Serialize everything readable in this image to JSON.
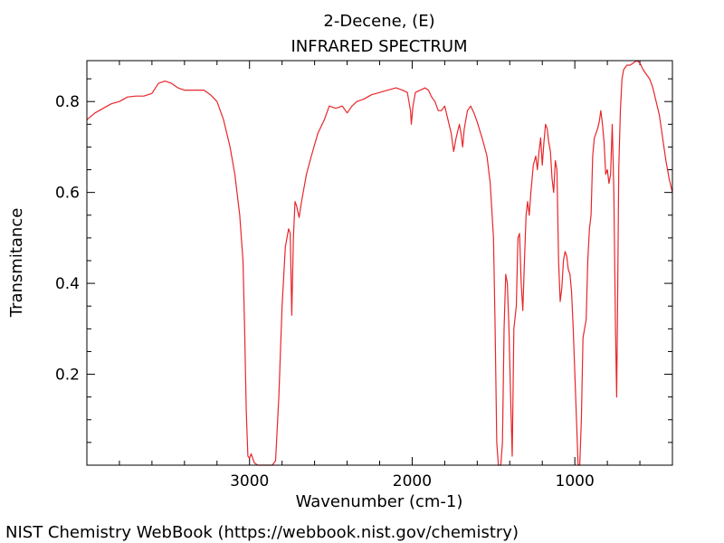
{
  "chart_data": {
    "type": "line",
    "title": "2-Decene, (E)",
    "subtitle": "INFRARED SPECTRUM",
    "xlabel": "Wavenumber (cm-1)",
    "ylabel": "Transmitance",
    "xlim": [
      4000,
      400
    ],
    "ylim": [
      0.0,
      0.89
    ],
    "x_reversed": true,
    "x_ticks": [
      3000,
      2000,
      1000
    ],
    "x_tick_labels": [
      "3000",
      "2000",
      "1000"
    ],
    "y_ticks": [
      0.2,
      0.4,
      0.6,
      0.8
    ],
    "y_tick_labels": [
      "0.2",
      "0.4",
      "0.6",
      "0.8"
    ],
    "grid": false,
    "line_color": "#e8262a",
    "series": [
      {
        "points": [
          [
            4000,
            0.76
          ],
          [
            3950,
            0.775
          ],
          [
            3900,
            0.785
          ],
          [
            3850,
            0.795
          ],
          [
            3800,
            0.8
          ],
          [
            3750,
            0.81
          ],
          [
            3700,
            0.812
          ],
          [
            3650,
            0.812
          ],
          [
            3600,
            0.818
          ],
          [
            3560,
            0.84
          ],
          [
            3520,
            0.845
          ],
          [
            3480,
            0.84
          ],
          [
            3440,
            0.83
          ],
          [
            3400,
            0.825
          ],
          [
            3360,
            0.825
          ],
          [
            3320,
            0.825
          ],
          [
            3280,
            0.825
          ],
          [
            3240,
            0.815
          ],
          [
            3200,
            0.8
          ],
          [
            3160,
            0.76
          ],
          [
            3120,
            0.7
          ],
          [
            3090,
            0.64
          ],
          [
            3060,
            0.55
          ],
          [
            3040,
            0.45
          ],
          [
            3030,
            0.3
          ],
          [
            3020,
            0.12
          ],
          [
            3010,
            0.02
          ],
          [
            3000,
            0.015
          ],
          [
            2990,
            0.025
          ],
          [
            2970,
            0.005
          ],
          [
            2950,
            0.0
          ],
          [
            2900,
            0.0
          ],
          [
            2860,
            0.0
          ],
          [
            2840,
            0.01
          ],
          [
            2820,
            0.15
          ],
          [
            2800,
            0.35
          ],
          [
            2780,
            0.48
          ],
          [
            2760,
            0.52
          ],
          [
            2750,
            0.51
          ],
          [
            2740,
            0.33
          ],
          [
            2730,
            0.5
          ],
          [
            2720,
            0.58
          ],
          [
            2710,
            0.57
          ],
          [
            2695,
            0.545
          ],
          [
            2680,
            0.58
          ],
          [
            2650,
            0.64
          ],
          [
            2620,
            0.68
          ],
          [
            2580,
            0.73
          ],
          [
            2540,
            0.76
          ],
          [
            2510,
            0.79
          ],
          [
            2470,
            0.785
          ],
          [
            2430,
            0.79
          ],
          [
            2400,
            0.775
          ],
          [
            2370,
            0.79
          ],
          [
            2340,
            0.8
          ],
          [
            2300,
            0.805
          ],
          [
            2250,
            0.815
          ],
          [
            2200,
            0.82
          ],
          [
            2150,
            0.825
          ],
          [
            2100,
            0.83
          ],
          [
            2060,
            0.825
          ],
          [
            2030,
            0.82
          ],
          [
            2010,
            0.78
          ],
          [
            2005,
            0.75
          ],
          [
            1995,
            0.79
          ],
          [
            1980,
            0.82
          ],
          [
            1950,
            0.825
          ],
          [
            1920,
            0.83
          ],
          [
            1900,
            0.825
          ],
          [
            1880,
            0.81
          ],
          [
            1860,
            0.8
          ],
          [
            1840,
            0.78
          ],
          [
            1820,
            0.78
          ],
          [
            1800,
            0.79
          ],
          [
            1780,
            0.76
          ],
          [
            1760,
            0.73
          ],
          [
            1745,
            0.69
          ],
          [
            1730,
            0.72
          ],
          [
            1710,
            0.75
          ],
          [
            1700,
            0.73
          ],
          [
            1690,
            0.7
          ],
          [
            1680,
            0.74
          ],
          [
            1660,
            0.78
          ],
          [
            1640,
            0.79
          ],
          [
            1620,
            0.775
          ],
          [
            1600,
            0.755
          ],
          [
            1570,
            0.72
          ],
          [
            1540,
            0.68
          ],
          [
            1520,
            0.62
          ],
          [
            1500,
            0.5
          ],
          [
            1490,
            0.3
          ],
          [
            1480,
            0.05
          ],
          [
            1470,
            0.0
          ],
          [
            1455,
            0.0
          ],
          [
            1445,
            0.05
          ],
          [
            1435,
            0.3
          ],
          [
            1425,
            0.42
          ],
          [
            1415,
            0.4
          ],
          [
            1405,
            0.3
          ],
          [
            1395,
            0.15
          ],
          [
            1385,
            0.02
          ],
          [
            1375,
            0.3
          ],
          [
            1360,
            0.35
          ],
          [
            1350,
            0.5
          ],
          [
            1340,
            0.51
          ],
          [
            1330,
            0.4
          ],
          [
            1320,
            0.34
          ],
          [
            1310,
            0.45
          ],
          [
            1300,
            0.55
          ],
          [
            1290,
            0.58
          ],
          [
            1280,
            0.55
          ],
          [
            1270,
            0.6
          ],
          [
            1255,
            0.66
          ],
          [
            1240,
            0.68
          ],
          [
            1230,
            0.65
          ],
          [
            1220,
            0.69
          ],
          [
            1210,
            0.72
          ],
          [
            1200,
            0.66
          ],
          [
            1190,
            0.71
          ],
          [
            1180,
            0.75
          ],
          [
            1170,
            0.74
          ],
          [
            1160,
            0.71
          ],
          [
            1150,
            0.69
          ],
          [
            1140,
            0.63
          ],
          [
            1130,
            0.6
          ],
          [
            1120,
            0.67
          ],
          [
            1110,
            0.65
          ],
          [
            1100,
            0.45
          ],
          [
            1090,
            0.36
          ],
          [
            1080,
            0.39
          ],
          [
            1070,
            0.45
          ],
          [
            1060,
            0.47
          ],
          [
            1050,
            0.46
          ],
          [
            1040,
            0.43
          ],
          [
            1030,
            0.42
          ],
          [
            1020,
            0.38
          ],
          [
            1010,
            0.3
          ],
          [
            1000,
            0.2
          ],
          [
            990,
            0.1
          ],
          [
            980,
            0.0
          ],
          [
            970,
            0.0
          ],
          [
            960,
            0.1
          ],
          [
            950,
            0.28
          ],
          [
            940,
            0.3
          ],
          [
            930,
            0.32
          ],
          [
            920,
            0.45
          ],
          [
            910,
            0.52
          ],
          [
            900,
            0.55
          ],
          [
            890,
            0.68
          ],
          [
            880,
            0.72
          ],
          [
            870,
            0.73
          ],
          [
            860,
            0.74
          ],
          [
            850,
            0.755
          ],
          [
            840,
            0.78
          ],
          [
            830,
            0.75
          ],
          [
            820,
            0.71
          ],
          [
            810,
            0.64
          ],
          [
            800,
            0.65
          ],
          [
            790,
            0.62
          ],
          [
            780,
            0.64
          ],
          [
            770,
            0.75
          ],
          [
            760,
            0.6
          ],
          [
            750,
            0.3
          ],
          [
            743,
            0.15
          ],
          [
            737,
            0.35
          ],
          [
            730,
            0.65
          ],
          [
            720,
            0.78
          ],
          [
            710,
            0.85
          ],
          [
            700,
            0.87
          ],
          [
            680,
            0.88
          ],
          [
            660,
            0.88
          ],
          [
            640,
            0.885
          ],
          [
            620,
            0.89
          ],
          [
            600,
            0.885
          ],
          [
            580,
            0.87
          ],
          [
            560,
            0.86
          ],
          [
            540,
            0.85
          ],
          [
            520,
            0.83
          ],
          [
            500,
            0.8
          ],
          [
            480,
            0.77
          ],
          [
            460,
            0.72
          ],
          [
            440,
            0.67
          ],
          [
            420,
            0.63
          ],
          [
            400,
            0.6
          ]
        ]
      }
    ]
  },
  "footer": {
    "text": "NIST Chemistry WebBook (https://webbook.nist.gov/chemistry)"
  }
}
